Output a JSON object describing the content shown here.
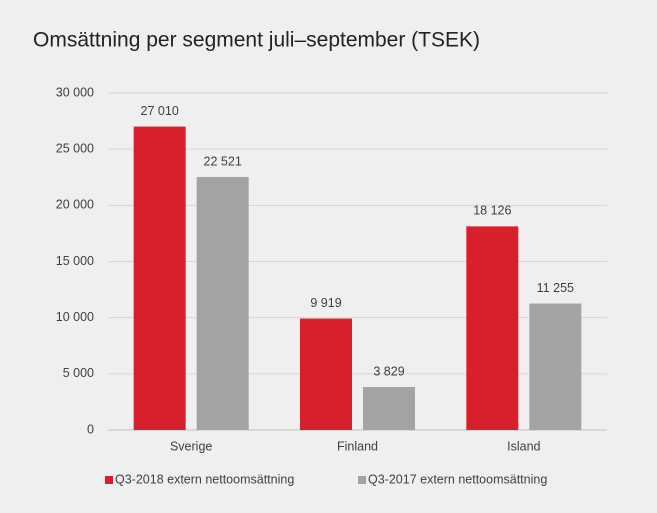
{
  "chart_data": {
    "type": "bar",
    "title": "Omsättning per segment juli–september (TSEK)",
    "categories": [
      "Sverige",
      "Finland",
      "Island"
    ],
    "series": [
      {
        "name": "Q3-2018 extern nettoomsättning",
        "color": "#d7202b",
        "values": [
          27010,
          9919,
          18126
        ],
        "value_labels": [
          "27 010",
          "9 919",
          "18 126"
        ]
      },
      {
        "name": "Q3-2017 extern nettoomsättning",
        "color": "#a3a3a3",
        "values": [
          22521,
          3829,
          11255
        ],
        "value_labels": [
          "22 521",
          "3 829",
          "11 255"
        ]
      }
    ],
    "ylim": [
      0,
      30000
    ],
    "yticks": [
      0,
      {
        "value": 5000,
        "label": "5 000"
      },
      {
        "value": 10000,
        "label": "10 000"
      },
      {
        "value": 15000,
        "label": "15 000"
      },
      {
        "value": 20000,
        "label": "20 000"
      },
      {
        "value": 25000,
        "label": "25 000"
      },
      {
        "value": 30000,
        "label": "30 000"
      }
    ],
    "grid": true,
    "legend": "bottom"
  }
}
